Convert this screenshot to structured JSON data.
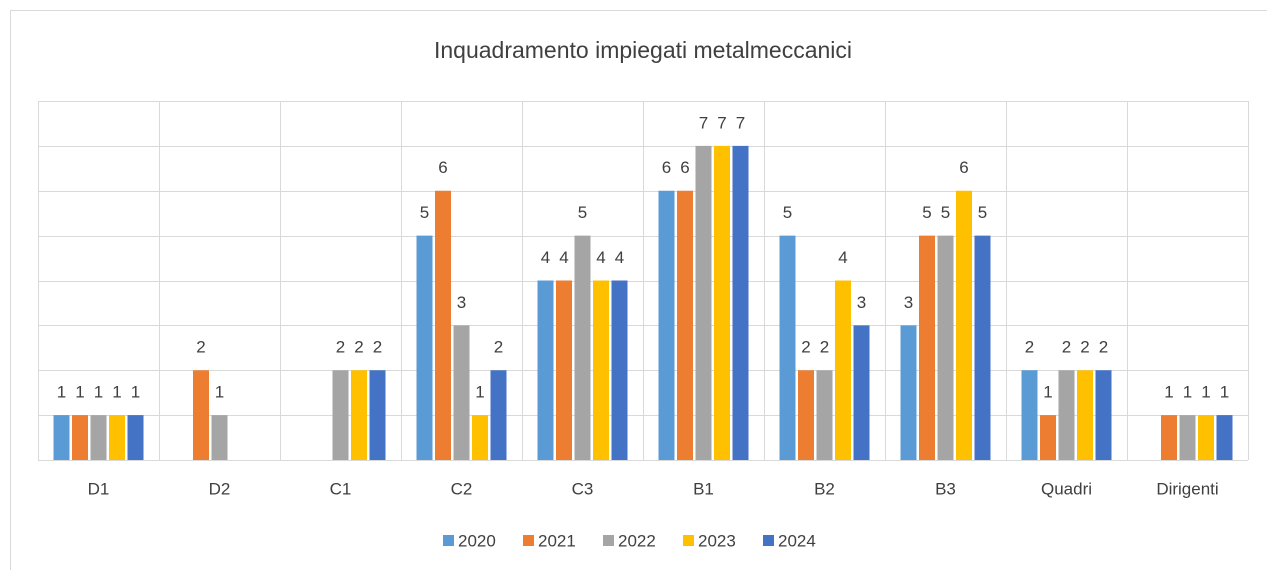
{
  "chart_data": {
    "type": "bar",
    "title": "Inquadramento impiegati metalmeccanici",
    "categories": [
      "D1",
      "D2",
      "C1",
      "C2",
      "C3",
      "B1",
      "B2",
      "B3",
      "Quadri",
      "Dirigenti"
    ],
    "series": [
      {
        "name": "2020",
        "color": "#5b9bd5",
        "values": [
          1,
          null,
          null,
          5,
          4,
          6,
          5,
          3,
          2,
          null
        ]
      },
      {
        "name": "2021",
        "color": "#ed7d31",
        "values": [
          1,
          2,
          null,
          6,
          4,
          6,
          2,
          5,
          1,
          1
        ]
      },
      {
        "name": "2022",
        "color": "#a5a5a5",
        "values": [
          1,
          1,
          2,
          3,
          5,
          7,
          2,
          5,
          2,
          1
        ]
      },
      {
        "name": "2023",
        "color": "#ffc000",
        "values": [
          1,
          null,
          2,
          1,
          4,
          7,
          4,
          6,
          2,
          1
        ]
      },
      {
        "name": "2024",
        "color": "#4472c4",
        "values": [
          1,
          null,
          2,
          2,
          4,
          7,
          3,
          5,
          2,
          1
        ]
      }
    ],
    "ylim": [
      0,
      8
    ],
    "yticks": [
      0,
      1,
      2,
      3,
      4,
      5,
      6,
      7,
      8
    ],
    "grid": true,
    "legend": "bottom"
  }
}
